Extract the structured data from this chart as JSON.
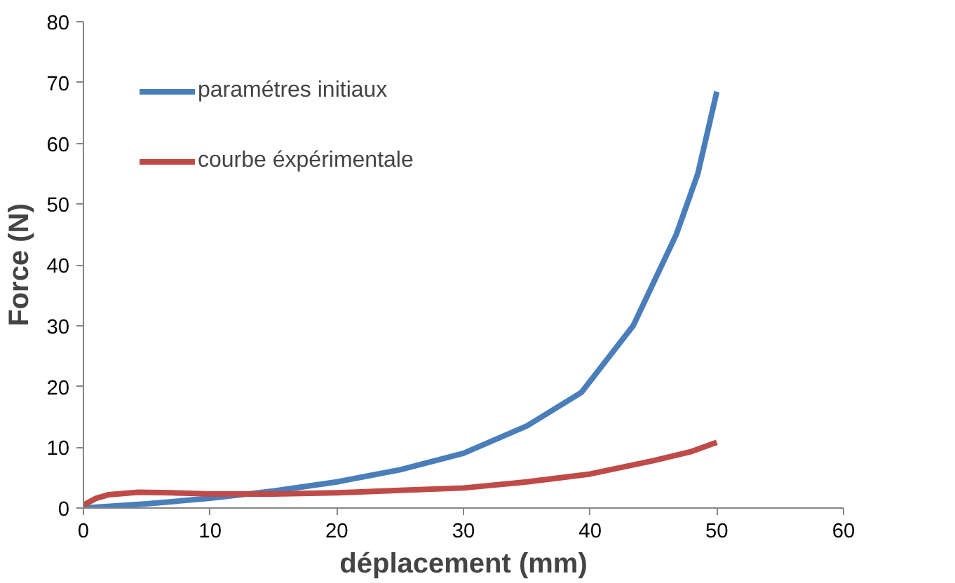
{
  "chart_data": {
    "type": "line",
    "xlabel": "déplacement (mm)",
    "ylabel": "Force (N)",
    "xlim": [
      0,
      60
    ],
    "ylim": [
      0,
      80
    ],
    "xticks": [
      0,
      10,
      20,
      30,
      40,
      50,
      60
    ],
    "yticks": [
      0,
      10,
      20,
      30,
      40,
      50,
      60,
      70,
      80
    ],
    "grid": false,
    "legend": "top left",
    "marker": "none",
    "line_style": "solid",
    "series": [
      {
        "name": "paramétres initiaux",
        "color": "#4a7ebb",
        "x": [
          0,
          5,
          10,
          15,
          20,
          25,
          30,
          35,
          39.3,
          43.4,
          46.8,
          48.5,
          50
        ],
        "values": [
          0,
          0.7,
          1.6,
          2.8,
          4.3,
          6.3,
          9,
          13.5,
          19,
          30,
          45,
          55,
          68.5
        ]
      },
      {
        "name": "courbe éxpérimentale",
        "color": "#be4b48",
        "x": [
          0,
          1,
          2,
          4.3,
          7,
          10,
          12,
          15,
          20,
          25,
          30,
          35,
          40,
          45,
          48,
          50
        ],
        "values": [
          0.5,
          1.6,
          2.2,
          2.6,
          2.5,
          2.3,
          2.3,
          2.3,
          2.5,
          2.9,
          3.3,
          4.3,
          5.6,
          7.8,
          9.3,
          10.8
        ]
      }
    ]
  }
}
